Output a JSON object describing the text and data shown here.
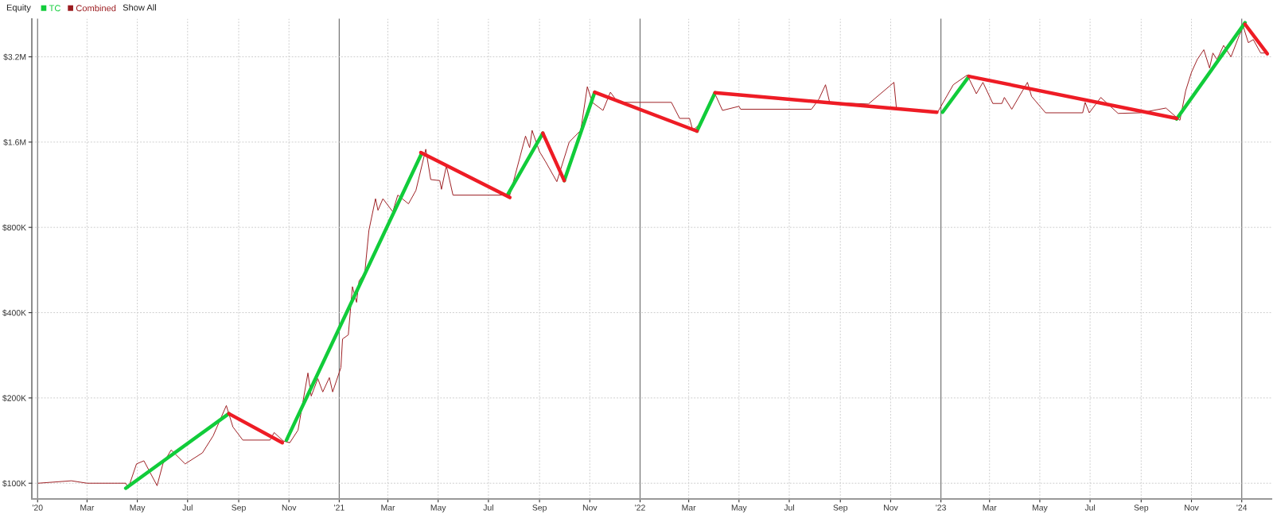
{
  "chart_data": {
    "type": "line",
    "title": "Equity",
    "annotations": [
      "Show All"
    ],
    "log": "y",
    "grid": true,
    "legend": "top left",
    "marker": "none",
    "line_style": "solid",
    "xlim": [
      "2019-12-25",
      "2024-02-06"
    ],
    "xticks": [
      {
        "value": "2020-01-01",
        "label": "'20"
      },
      {
        "value": "2020-03-01",
        "label": "Mar"
      },
      {
        "value": "2020-05-01",
        "label": "May"
      },
      {
        "value": "2020-07-01",
        "label": "Jul"
      },
      {
        "value": "2020-09-01",
        "label": "Sep"
      },
      {
        "value": "2020-11-01",
        "label": "Nov"
      },
      {
        "value": "2021-01-01",
        "label": "'21"
      },
      {
        "value": "2021-03-01",
        "label": "Mar"
      },
      {
        "value": "2021-05-01",
        "label": "May"
      },
      {
        "value": "2021-07-01",
        "label": "Jul"
      },
      {
        "value": "2021-09-01",
        "label": "Sep"
      },
      {
        "value": "2021-11-01",
        "label": "Nov"
      },
      {
        "value": "2022-01-01",
        "label": "'22"
      },
      {
        "value": "2022-03-01",
        "label": "Mar"
      },
      {
        "value": "2022-05-01",
        "label": "May"
      },
      {
        "value": "2022-07-01",
        "label": "Jul"
      },
      {
        "value": "2022-09-01",
        "label": "Sep"
      },
      {
        "value": "2022-11-01",
        "label": "Nov"
      },
      {
        "value": "2023-01-01",
        "label": "'23"
      },
      {
        "value": "2023-03-01",
        "label": "Mar"
      },
      {
        "value": "2023-05-01",
        "label": "May"
      },
      {
        "value": "2023-07-01",
        "label": "Jul"
      },
      {
        "value": "2023-09-01",
        "label": "Sep"
      },
      {
        "value": "2023-11-01",
        "label": "Nov"
      },
      {
        "value": "2024-01-01",
        "label": "'24"
      }
    ],
    "ylim": [
      88000,
      4360000
    ],
    "yticks": [
      {
        "value": 100000,
        "label": "$100K"
      },
      {
        "value": 200000,
        "label": "$200K"
      },
      {
        "value": 400000,
        "label": "$400K"
      },
      {
        "value": 800000,
        "label": "$800K"
      },
      {
        "value": 1600000,
        "label": "$1.6M"
      },
      {
        "value": 3200000,
        "label": "$3.2M"
      }
    ],
    "series": [
      {
        "name": "TC",
        "color": "#11cc3a",
        "x": [
          "2020-04-17",
          "2020-08-20"
        ],
        "values": [
          96000,
          176000
        ]
      },
      {
        "name": "Combined",
        "color": "#9b1b1f",
        "x": [
          "2020-01-02",
          "2020-02-11",
          "2020-03-01",
          "2020-04-17",
          "2020-04-20",
          "2020-04-30",
          "2020-05-09",
          "2020-05-25",
          "2020-06-01",
          "2020-06-11",
          "2020-06-28",
          "2020-07-19",
          "2020-08-01",
          "2020-08-17",
          "2020-08-25",
          "2020-09-06",
          "2020-10-09",
          "2020-10-14",
          "2020-10-25",
          "2020-11-02",
          "2020-11-12",
          "2020-11-24",
          "2020-11-28",
          "2020-12-06",
          "2020-12-12",
          "2020-12-20",
          "2020-12-24",
          "2021-01-03",
          "2021-01-05",
          "2021-01-12",
          "2021-01-17",
          "2021-01-22",
          "2021-01-25",
          "2021-02-01",
          "2021-02-06",
          "2021-02-14",
          "2021-02-17",
          "2021-02-23",
          "2021-03-07",
          "2021-03-13",
          "2021-03-26",
          "2021-04-04",
          "2021-04-16",
          "2021-04-22",
          "2021-05-03",
          "2021-05-05",
          "2021-05-11",
          "2021-05-19",
          "2021-07-22",
          "2021-07-27",
          "2021-08-15",
          "2021-08-20",
          "2021-08-23",
          "2021-09-01",
          "2021-09-08",
          "2021-09-22",
          "2021-10-07",
          "2021-10-21",
          "2021-10-29",
          "2021-11-04",
          "2021-11-17",
          "2021-11-26",
          "2021-12-05",
          "2022-02-08",
          "2022-02-18",
          "2022-03-02",
          "2022-03-06",
          "2022-03-18",
          "2022-04-01",
          "2022-04-11",
          "2022-05-01",
          "2022-05-03",
          "2022-07-28",
          "2022-08-06",
          "2022-08-14",
          "2022-08-19",
          "2022-10-05",
          "2022-11-05",
          "2022-11-08",
          "2022-12-28",
          "2023-01-16",
          "2023-02-02",
          "2023-02-13",
          "2023-02-21",
          "2023-03-05",
          "2023-03-16",
          "2023-03-19",
          "2023-03-28",
          "2023-04-16",
          "2023-04-21",
          "2023-05-08",
          "2023-06-22",
          "2023-06-25",
          "2023-06-30",
          "2023-07-14",
          "2023-08-04",
          "2023-08-31",
          "2023-10-01",
          "2023-10-18",
          "2023-10-25",
          "2023-11-01",
          "2023-11-08",
          "2023-11-16",
          "2023-11-23",
          "2023-11-27",
          "2023-12-02",
          "2023-12-10",
          "2023-12-19",
          "2023-12-29",
          "2024-01-03",
          "2024-01-09",
          "2024-01-15",
          "2024-01-24",
          "2024-01-31"
        ],
        "values": [
          100000,
          102000,
          100000,
          100000,
          96000,
          117000,
          120000,
          98000,
          117000,
          131000,
          117000,
          128000,
          147000,
          188000,
          158000,
          142000,
          142000,
          151000,
          141000,
          139000,
          154000,
          245000,
          203000,
          234000,
          210000,
          236000,
          210000,
          256000,
          323000,
          334000,
          494000,
          435000,
          517000,
          554000,
          781000,
          1010000,
          919000,
          1010000,
          908000,
          1040000,
          969000,
          1080000,
          1510000,
          1180000,
          1170000,
          1090000,
          1320000,
          1040000,
          1040000,
          1040000,
          1680000,
          1530000,
          1760000,
          1480000,
          1370000,
          1160000,
          1600000,
          1760000,
          2510000,
          2210000,
          2070000,
          2400000,
          2210000,
          2210000,
          1940000,
          1940000,
          1760000,
          1890000,
          2400000,
          2070000,
          2140000,
          2090000,
          2090000,
          2270000,
          2550000,
          2210000,
          2180000,
          2600000,
          2110000,
          2040000,
          2550000,
          2760000,
          2370000,
          2600000,
          2190000,
          2190000,
          2300000,
          2090000,
          2600000,
          2320000,
          2030000,
          2030000,
          2210000,
          2030000,
          2300000,
          2020000,
          2030000,
          2110000,
          1910000,
          2430000,
          2820000,
          3130000,
          3390000,
          2920000,
          3300000,
          3130000,
          3510000,
          3200000,
          3810000,
          4080000,
          3590000,
          3680000,
          3300000,
          3300000
        ]
      },
      {
        "color": "#11cc3a",
        "x": [
          "2020-10-29",
          "2021-04-11"
        ],
        "values": [
          142000,
          1460000
        ]
      },
      {
        "color": "#11cc3a",
        "x": [
          "2021-07-24",
          "2021-09-05"
        ],
        "values": [
          1040000,
          1720000
        ]
      },
      {
        "color": "#11cc3a",
        "x": [
          "2021-10-01",
          "2021-11-07"
        ],
        "values": [
          1170000,
          2400000
        ]
      },
      {
        "color": "#11cc3a",
        "x": [
          "2022-03-11",
          "2022-04-02"
        ],
        "values": [
          1750000,
          2390000
        ]
      },
      {
        "color": "#11cc3a",
        "x": [
          "2023-01-03",
          "2023-02-04"
        ],
        "values": [
          2040000,
          2730000
        ]
      },
      {
        "color": "#11cc3a",
        "x": [
          "2023-10-14",
          "2024-01-05"
        ],
        "values": [
          1930000,
          4220000
        ]
      },
      {
        "color": "#ee1c25",
        "x": [
          "2020-08-20",
          "2020-10-24"
        ],
        "values": [
          176000,
          139000
        ]
      },
      {
        "color": "#ee1c25",
        "x": [
          "2021-04-10",
          "2021-07-27"
        ],
        "values": [
          1470000,
          1020000
        ]
      },
      {
        "color": "#ee1c25",
        "x": [
          "2021-09-05",
          "2021-10-01"
        ],
        "values": [
          1720000,
          1170000
        ]
      },
      {
        "color": "#ee1c25",
        "x": [
          "2021-11-07",
          "2022-03-11"
        ],
        "values": [
          2400000,
          1750000
        ]
      },
      {
        "color": "#ee1c25",
        "x": [
          "2022-04-02",
          "2022-12-27"
        ],
        "values": [
          2390000,
          2040000
        ]
      },
      {
        "color": "#ee1c25",
        "x": [
          "2023-02-04",
          "2023-10-14"
        ],
        "values": [
          2730000,
          1940000
        ]
      },
      {
        "color": "#ee1c25",
        "x": [
          "2024-01-05",
          "2024-02-01"
        ],
        "values": [
          4170000,
          3280000
        ]
      }
    ]
  }
}
